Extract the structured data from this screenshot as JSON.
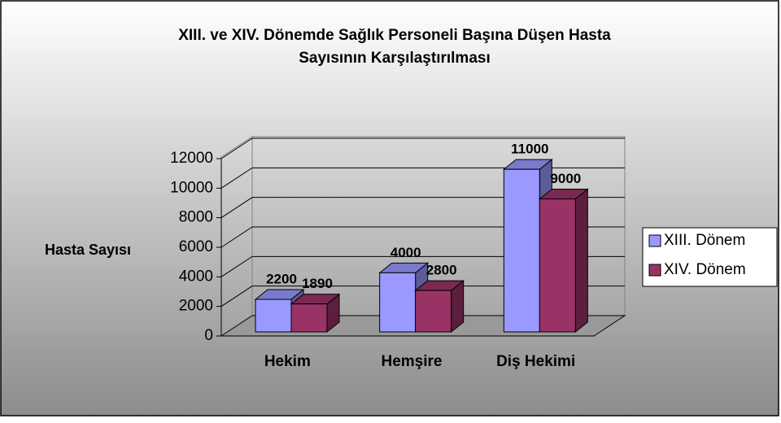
{
  "chart_data": {
    "type": "bar3d",
    "title": "XIII. ve XIV. Dönemde Sağlık Personeli Başına Düşen Hasta",
    "subtitle": "Sayısının Karşılaştırılması",
    "ylabel": "Hasta Sayısı",
    "categories": [
      "Hekim",
      "Hemşire",
      "Diş Hekimi"
    ],
    "series": [
      {
        "name": "XIII. Dönem",
        "color": "#9999ff",
        "values": [
          2200,
          4000,
          11000
        ]
      },
      {
        "name": "XIV. Dönem",
        "color": "#993366",
        "values": [
          1890,
          2800,
          9000
        ]
      }
    ],
    "ylim": [
      0,
      12000
    ],
    "yticks": [
      0,
      2000,
      4000,
      6000,
      8000,
      10000,
      12000
    ],
    "grid": true,
    "legend": "right"
  }
}
